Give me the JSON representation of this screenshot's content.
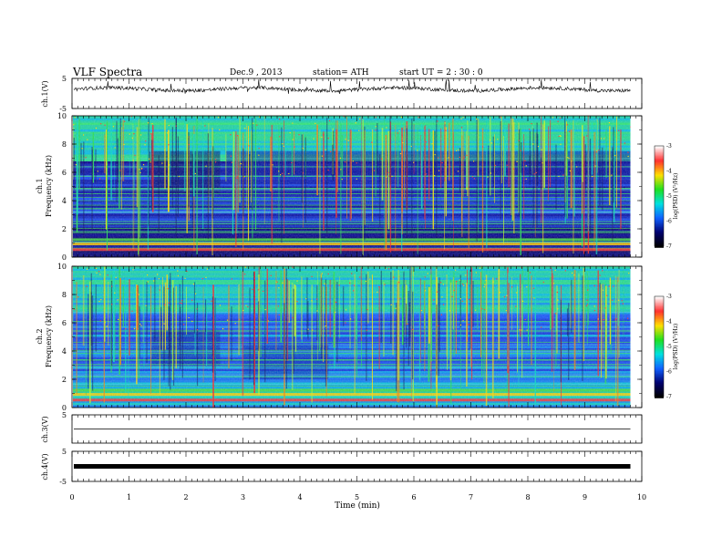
{
  "header": {
    "title": "VLF Spectra",
    "date": "Dec.9  , 2013",
    "station": "station= ATH",
    "start": "start  UT  =   2  : 30 : 0"
  },
  "colorbar": {
    "label": "log(PSD) (V²/Hz)",
    "ticks": [
      "-3",
      "-4",
      "-5",
      "-6",
      "-7"
    ],
    "colors": [
      "#ffffff",
      "#ff3030",
      "#ffe000",
      "#20e020",
      "#00e0e0",
      "#1060ff",
      "#00006e",
      "#000000"
    ]
  },
  "chart_data": [
    {
      "type": "line",
      "ylabel": "ch.1(V)",
      "ylim": [
        -5,
        5
      ],
      "yticks": [
        "5",
        "-5"
      ],
      "xlim": [
        0,
        10
      ],
      "series": [
        {
          "trace": "noisy waveform hovering near 1.5 V with spikes"
        }
      ]
    },
    {
      "type": "heatmap",
      "ylabel": "ch.1\nFrequency  (kHz)",
      "ylim": [
        0,
        10
      ],
      "yticks": [
        "10",
        "8",
        "6",
        "4",
        "2",
        "0"
      ],
      "x_range_min": [
        0,
        9.8
      ],
      "value_range_logpsd": [
        -7,
        -3
      ]
    },
    {
      "type": "heatmap",
      "ylabel": "ch.2\nFrequency  (kHz)",
      "ylim": [
        0,
        10
      ],
      "yticks": [
        "10",
        "8",
        "6",
        "4",
        "2",
        "0"
      ],
      "x_range_min": [
        0,
        9.8
      ],
      "value_range_logpsd": [
        -7,
        -3
      ]
    },
    {
      "type": "line",
      "ylabel": "ch.3(V)",
      "ylim": [
        -5,
        5
      ],
      "yticks": [
        "5"
      ],
      "series": [
        {
          "trace": "flat line near 0 V"
        }
      ]
    },
    {
      "type": "line",
      "ylabel": "ch.4(V)",
      "ylim": [
        -5,
        5
      ],
      "yticks": [
        "5",
        "-5"
      ],
      "series": [
        {
          "trace": "thick flat band near 0 V"
        }
      ]
    }
  ],
  "xaxis": {
    "label": "Time  (min)",
    "ticks": [
      "0",
      "1",
      "2",
      "3",
      "4",
      "5",
      "6",
      "7",
      "8",
      "9",
      "10"
    ],
    "xlim": [
      0,
      10
    ]
  }
}
